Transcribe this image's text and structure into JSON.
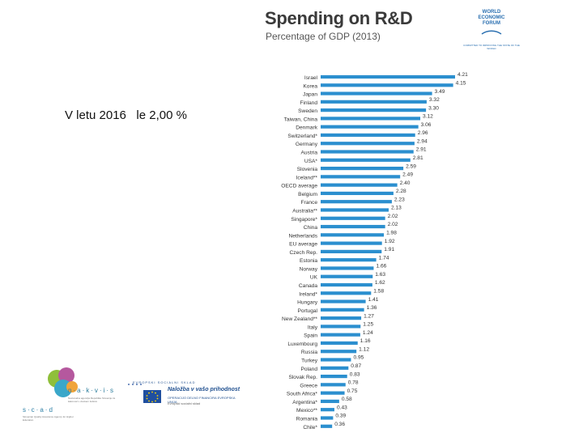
{
  "note": "V letu 2016   le 2,00 %",
  "chart_data": {
    "type": "bar",
    "orientation": "horizontal",
    "title": "Spending on R&D",
    "subtitle": "Percentage of GDP (2013)",
    "categories": [
      "Israel",
      "Korea",
      "Japan",
      "Finland",
      "Sweden",
      "Taiwan, China",
      "Denmark",
      "Switzerland*",
      "Germany",
      "Austria",
      "USA*",
      "Slovenia",
      "Iceland**",
      "OECD average",
      "Belgium",
      "France",
      "Australia**",
      "Singapore*",
      "China",
      "Netherlands",
      "EU average",
      "Czech Rep.",
      "Estonia",
      "Norway",
      "UK",
      "Canada",
      "Ireland*",
      "Hungary",
      "Portugal",
      "New Zealand**",
      "Italy",
      "Spain",
      "Luxembourg",
      "Russia",
      "Turkey",
      "Poland",
      "Slovak Rep.",
      "Greece",
      "South Africa*",
      "Argentina*",
      "Mexico**",
      "Romania",
      "Chile*"
    ],
    "values": [
      4.21,
      4.15,
      3.49,
      3.32,
      3.3,
      3.12,
      3.06,
      2.96,
      2.94,
      2.91,
      2.81,
      2.59,
      2.49,
      2.4,
      2.28,
      2.23,
      2.13,
      2.02,
      2.02,
      1.98,
      1.92,
      1.91,
      1.74,
      1.66,
      1.63,
      1.62,
      1.58,
      1.41,
      1.36,
      1.27,
      1.25,
      1.24,
      1.16,
      1.12,
      0.95,
      0.87,
      0.83,
      0.78,
      0.75,
      0.58,
      0.43,
      0.39,
      0.36
    ],
    "labels": [
      "4.21",
      "4.15",
      "3.49",
      "3.32",
      "3.30",
      "3.12",
      "3.06",
      "2.96",
      "2.94",
      "2.91",
      "2.81",
      "2.59",
      "2.49",
      "2.40",
      "2.28",
      "2.23",
      "2.13",
      "2.02",
      "2.02",
      "1.98",
      "1.92",
      "1.91",
      "1.74",
      "1.66",
      "1.63",
      "1.62",
      "1.58",
      "1.41",
      "1.36",
      "1.27",
      "1.25",
      "1.24",
      "1.16",
      "1.12",
      "0.95",
      "0.87",
      "0.83",
      "0.78",
      "0.75",
      "0.58",
      "0.43",
      "0.39",
      "0.36"
    ],
    "xlim": [
      0,
      4.21
    ],
    "bar_color": "#2b8fcf"
  },
  "logos": {
    "wef": {
      "line1": "WORLD",
      "line2": "ECONOMIC",
      "line3": "FORUM",
      "tagline": "COMMITTED TO IMPROVING THE STATE OF THE WORLD"
    },
    "nakvis": {
      "name": "n·a·k·v·i·s",
      "sub": "Nacionalna agencija Republike Slovenije za kakovost v visokem šolstvu"
    },
    "scad": {
      "name": "s·c·a·d",
      "sub": "Slovenian Quality Assurance Agency for Higher Education"
    },
    "eu": {
      "fund": "EVROPSKI SOCIALNI SKLAD",
      "title": "Naložba v vašo prihodnost",
      "line2": "OPERACIJO DELNO FINANCIRA EVROPSKA UNIJA",
      "line3": "Evropski socialni sklad"
    }
  }
}
